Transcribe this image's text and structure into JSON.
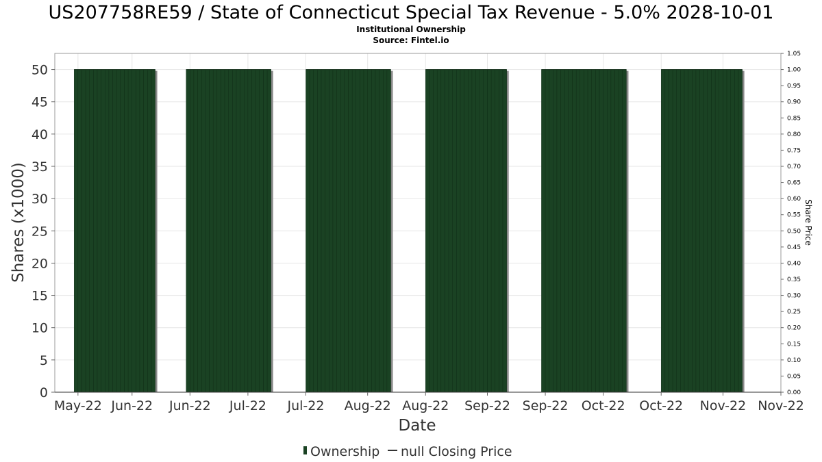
{
  "chart_data": {
    "type": "bar",
    "title": "US207758RE59 / State of Connecticut Special Tax Revenue - 5.0% 2028-10-01",
    "subtitle_lines": [
      "Institutional Ownership",
      "Source: Fintel.io"
    ],
    "xlabel": "Date",
    "ylabel": "Shares (x1000)",
    "y2label": "Share Price",
    "ylim": [
      0,
      52.5
    ],
    "y2lim": [
      0,
      1.05
    ],
    "yticks": [
      0,
      5,
      10,
      15,
      20,
      25,
      30,
      35,
      40,
      45,
      50
    ],
    "y2ticks": [
      "0.00",
      "0.05",
      "0.10",
      "0.15",
      "0.20",
      "0.25",
      "0.30",
      "0.35",
      "0.40",
      "0.45",
      "0.50",
      "0.55",
      "0.60",
      "0.65",
      "0.70",
      "0.75",
      "0.80",
      "0.85",
      "0.90",
      "0.95",
      "1.00",
      "1.05"
    ],
    "xlim": [
      "2022-05-12",
      "2022-11-16"
    ],
    "xticks": [
      {
        "date": "2022-05-18",
        "label": "May-22"
      },
      {
        "date": "2022-06-01",
        "label": "Jun-22"
      },
      {
        "date": "2022-06-16",
        "label": "Jun-22"
      },
      {
        "date": "2022-07-01",
        "label": "Jul-22"
      },
      {
        "date": "2022-07-16",
        "label": "Jul-22"
      },
      {
        "date": "2022-08-01",
        "label": "Aug-22"
      },
      {
        "date": "2022-08-16",
        "label": "Aug-22"
      },
      {
        "date": "2022-09-01",
        "label": "Sep-22"
      },
      {
        "date": "2022-09-16",
        "label": "Sep-22"
      },
      {
        "date": "2022-10-01",
        "label": "Oct-22"
      },
      {
        "date": "2022-10-16",
        "label": "Oct-22"
      },
      {
        "date": "2022-11-01",
        "label": "Nov-22"
      },
      {
        "date": "2022-11-16",
        "label": "Nov-22"
      }
    ],
    "series": [
      {
        "name": "Ownership",
        "color": "#1a4223",
        "periods": [
          {
            "start": "2022-05-17",
            "end": "2022-06-06",
            "value": 50
          },
          {
            "start": "2022-06-15",
            "end": "2022-07-06",
            "value": 50
          },
          {
            "start": "2022-07-16",
            "end": "2022-08-06",
            "value": 50
          },
          {
            "start": "2022-08-16",
            "end": "2022-09-05",
            "value": 50
          },
          {
            "start": "2022-09-15",
            "end": "2022-10-06",
            "value": 50
          },
          {
            "start": "2022-10-16",
            "end": "2022-11-05",
            "value": 50
          }
        ]
      },
      {
        "name": "null Closing Price",
        "color": "#333333",
        "values": []
      }
    ],
    "grid": true,
    "legend_position": "bottom-center"
  }
}
